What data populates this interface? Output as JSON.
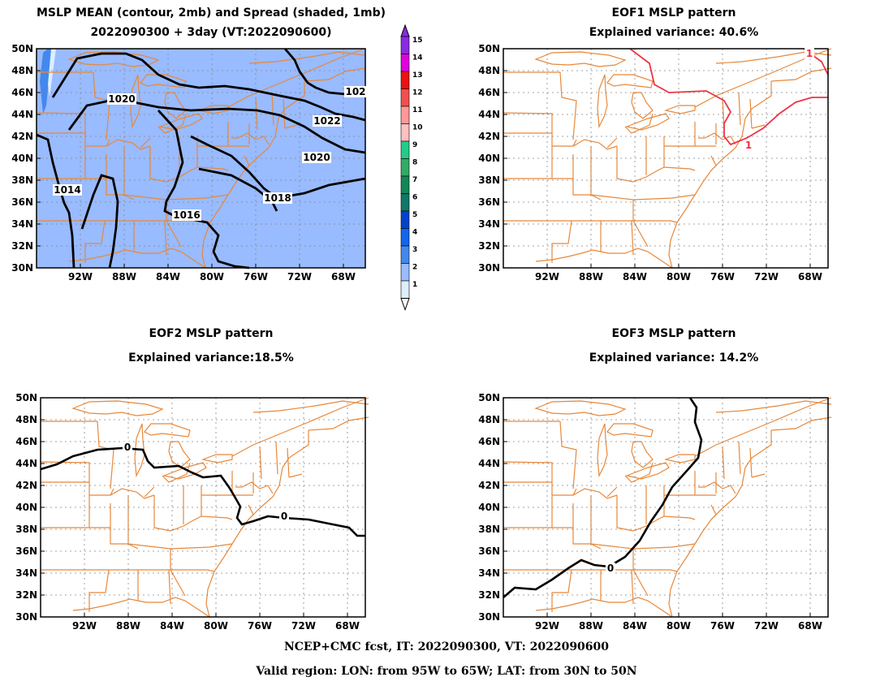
{
  "panels": {
    "mean": {
      "title_line1": "MSLP MEAN (contour, 2mb) and Spread (shaded, 1mb)",
      "title_line2": "2022090300 + 3day (VT:2022090600)",
      "contour_labels": [
        "1020",
        "1022",
        "1020",
        "1014",
        "1018",
        "1016",
        "102"
      ]
    },
    "eof1": {
      "title_line1": "EOF1 MSLP pattern",
      "title_line2": "Explained variance: 40.6%",
      "contour_labels": [
        "1",
        "1"
      ]
    },
    "eof2": {
      "title_line1": "EOF2 MSLP pattern",
      "title_line2": "Explained variance:18.5%",
      "contour_labels": [
        "0",
        "0"
      ]
    },
    "eof3": {
      "title_line1": "EOF3 MSLP pattern",
      "title_line2": "Explained variance: 14.2%",
      "contour_labels": [
        "0"
      ]
    }
  },
  "lat_ticks": [
    "50N",
    "48N",
    "46N",
    "44N",
    "42N",
    "40N",
    "38N",
    "36N",
    "34N",
    "32N",
    "30N"
  ],
  "lon_ticks": [
    "92W",
    "88W",
    "84W",
    "80W",
    "76W",
    "72W",
    "68W"
  ],
  "colorbar": {
    "labels": [
      "15",
      "14",
      "13",
      "12",
      "11",
      "10",
      "9",
      "8",
      "7",
      "6",
      "5",
      "4",
      "3",
      "2",
      "1"
    ],
    "colors": [
      "#8a2be2",
      "#e000e0",
      "#ee1111",
      "#f25050",
      "#ff9999",
      "#ffc0c0",
      "#22cc88",
      "#33aa66",
      "#118855",
      "#117766",
      "#0044cc",
      "#1166ee",
      "#4488ee",
      "#99bbff",
      "#ddeeff"
    ]
  },
  "map_colors": {
    "spread_fill": "#99bbff",
    "spread_dark": "#4488ee",
    "coast": "#e8883a",
    "grid": "#999999",
    "eof1_contour": "#ee3344"
  },
  "footer": {
    "line1": "NCEP+CMC fcst, IT: 2022090300, VT: 2022090600",
    "line2": "Valid region: LON: from 95W to 65W; LAT: from 30N to 50N"
  }
}
